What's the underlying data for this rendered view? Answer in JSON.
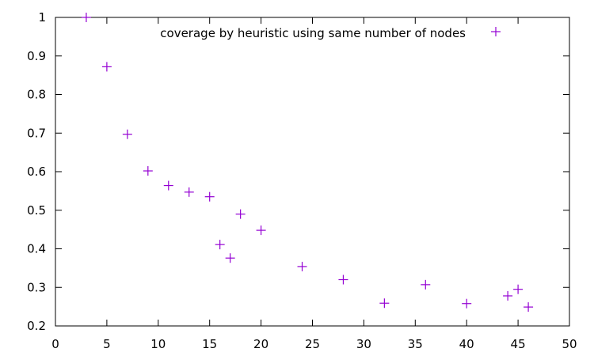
{
  "chart_data": {
    "type": "scatter",
    "title": "",
    "xlabel": "",
    "ylabel": "",
    "xlim": [
      0,
      50
    ],
    "ylim": [
      0.2,
      1.0
    ],
    "x_ticks": [
      "0",
      "5",
      "10",
      "15",
      "20",
      "25",
      "30",
      "35",
      "40",
      "45",
      "50"
    ],
    "y_ticks": [
      "0.2",
      "0.3",
      "0.4",
      "0.5",
      "0.6",
      "0.7",
      "0.8",
      "0.9",
      "1"
    ],
    "grid": false,
    "legend_position": "top-center",
    "marker": "plus",
    "series": [
      {
        "name": "coverage by heuristic using same number of nodes",
        "color": "#9400d3",
        "x": [
          3,
          5,
          7,
          9,
          11,
          13,
          15,
          16,
          17,
          18,
          20,
          24,
          28,
          32,
          36,
          40,
          44,
          45,
          46
        ],
        "y": [
          1.0,
          0.872,
          0.697,
          0.602,
          0.564,
          0.547,
          0.535,
          0.411,
          0.376,
          0.49,
          0.448,
          0.354,
          0.32,
          0.259,
          0.307,
          0.258,
          0.278,
          0.295,
          0.249
        ]
      }
    ]
  }
}
